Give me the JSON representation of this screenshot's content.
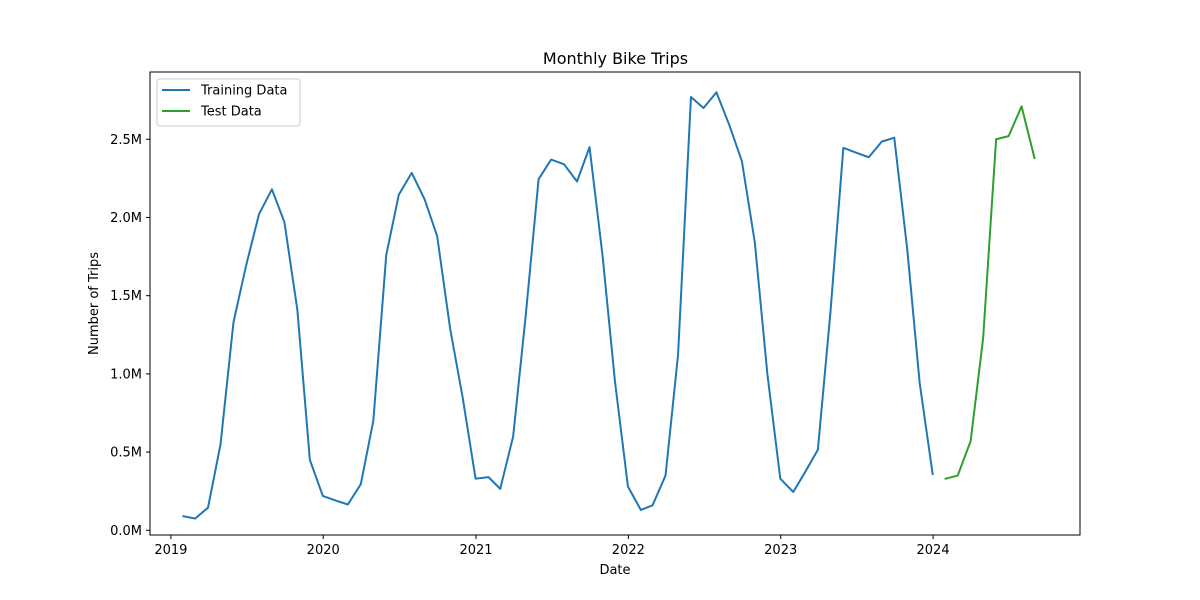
{
  "chart_data": {
    "type": "line",
    "title": "Monthly Bike Trips",
    "xlabel": "Date",
    "ylabel": "Number of Trips",
    "x_ticks": [
      "2019",
      "2020",
      "2021",
      "2022",
      "2023",
      "2024"
    ],
    "y_ticks": [
      "0.0M",
      "0.5M",
      "1.0M",
      "1.5M",
      "2.0M",
      "2.5M"
    ],
    "ylim": [
      -30000,
      2930000
    ],
    "xlim": [
      "2018-11-12",
      "2024-12-18"
    ],
    "grid": false,
    "legend_position": "top-left",
    "series": [
      {
        "name": "Training Data",
        "color": "#1f77b4",
        "x": [
          "2019-01-31",
          "2019-02-28",
          "2019-03-31",
          "2019-04-30",
          "2019-05-31",
          "2019-06-30",
          "2019-07-31",
          "2019-08-31",
          "2019-09-30",
          "2019-10-31",
          "2019-11-30",
          "2019-12-31",
          "2020-01-31",
          "2020-02-29",
          "2020-03-31",
          "2020-04-30",
          "2020-05-31",
          "2020-06-30",
          "2020-07-31",
          "2020-08-31",
          "2020-09-30",
          "2020-10-31",
          "2020-11-30",
          "2020-12-31",
          "2021-01-31",
          "2021-02-28",
          "2021-03-31",
          "2021-04-30",
          "2021-05-31",
          "2021-06-30",
          "2021-07-31",
          "2021-08-31",
          "2021-09-30",
          "2021-10-31",
          "2021-11-30",
          "2021-12-31",
          "2022-01-31",
          "2022-02-28",
          "2022-03-31",
          "2022-04-30",
          "2022-05-31",
          "2022-06-30",
          "2022-07-31",
          "2022-08-31",
          "2022-09-30",
          "2022-10-31",
          "2022-11-30",
          "2022-12-31",
          "2023-01-31",
          "2023-02-28",
          "2023-03-31",
          "2023-04-30",
          "2023-05-31",
          "2023-06-30",
          "2023-07-31",
          "2023-08-31",
          "2023-09-30",
          "2023-10-31",
          "2023-11-30",
          "2023-12-31"
        ],
        "values": [
          90000,
          75000,
          145000,
          550000,
          1330000,
          1690000,
          2020000,
          2180000,
          1970000,
          1410000,
          450000,
          220000,
          190000,
          165000,
          295000,
          700000,
          1760000,
          2145000,
          2285000,
          2115000,
          1880000,
          1290000,
          850000,
          330000,
          340000,
          265000,
          600000,
          1370000,
          2245000,
          2370000,
          2340000,
          2230000,
          2450000,
          1760000,
          950000,
          280000,
          130000,
          160000,
          350000,
          1120000,
          2770000,
          2700000,
          2800000,
          2590000,
          2360000,
          1840000,
          1000000,
          330000,
          245000,
          370000,
          515000,
          1390000,
          2445000,
          2415000,
          2385000,
          2485000,
          2510000,
          1800000,
          940000,
          360000
        ]
      },
      {
        "name": "Test Data",
        "color": "#2ca02c",
        "x": [
          "2024-01-31",
          "2024-02-29",
          "2024-03-31",
          "2024-04-30",
          "2024-05-31",
          "2024-06-30",
          "2024-07-31",
          "2024-08-31"
        ],
        "values": [
          330000,
          350000,
          570000,
          1230000,
          2500000,
          2520000,
          2710000,
          2380000
        ]
      }
    ]
  }
}
